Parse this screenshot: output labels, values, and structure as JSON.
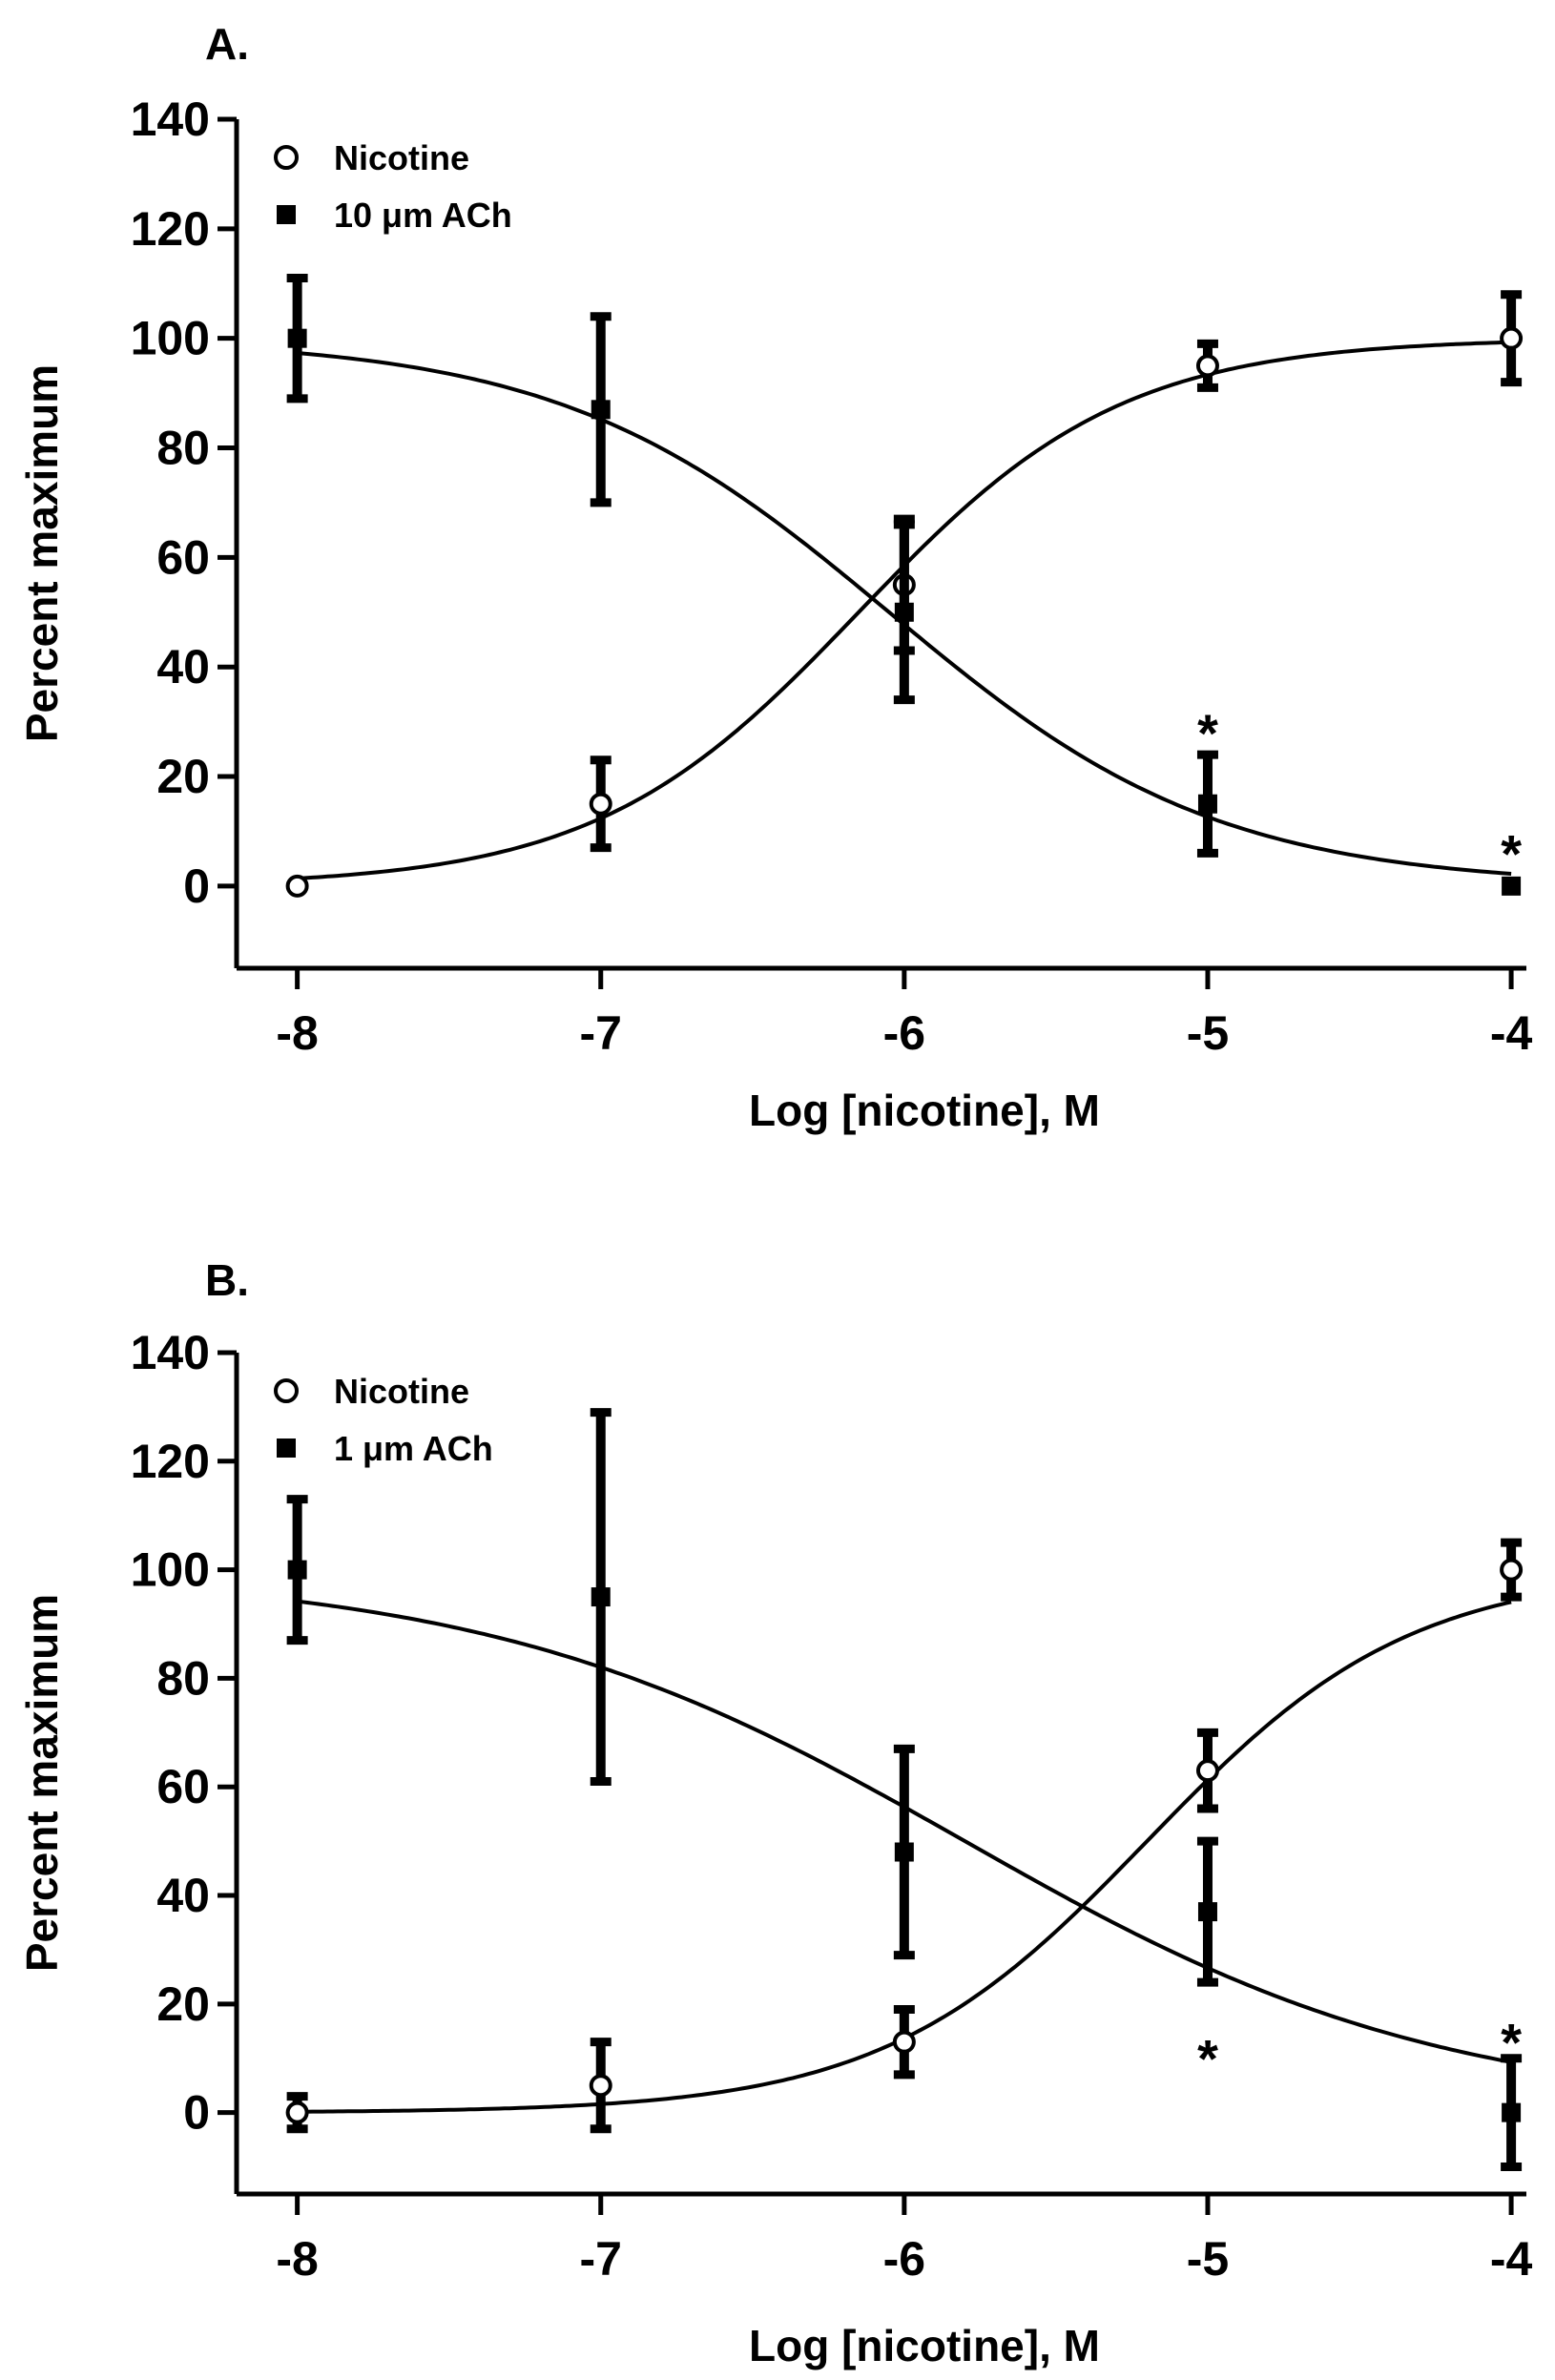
{
  "chart_data": [
    {
      "type": "scatter",
      "panel_label": "A.",
      "xlabel": "Log [nicotine], M",
      "ylabel": "Percent maximum",
      "xlim": [
        -8.2,
        -3.95
      ],
      "ylim": [
        -15,
        140
      ],
      "x_ticks": [
        -8,
        -7,
        -6,
        -5,
        -4
      ],
      "x_tick_labels": [
        "-8",
        "-7",
        "-6",
        "-5",
        "-4"
      ],
      "y_ticks": [
        0,
        20,
        40,
        60,
        80,
        100,
        120,
        140
      ],
      "y_tick_labels": [
        "0",
        "20",
        "40",
        "60",
        "80",
        "100",
        "120",
        "140"
      ],
      "legend_position": "top-left",
      "series": [
        {
          "name": "Nicotine",
          "marker": "open-circle",
          "x": [
            -8,
            -7,
            -6,
            -5,
            -4
          ],
          "y": [
            0,
            15,
            55,
            95,
            100
          ],
          "err": [
            0,
            8,
            12,
            4,
            8
          ],
          "fit": {
            "model": "sigmoid",
            "bottom": 0,
            "top": 100,
            "log_ec50": -6.15,
            "hill": 1.0
          }
        },
        {
          "name": "10 μm ACh",
          "marker": "filled-square",
          "x": [
            -8,
            -7,
            -6,
            -5,
            -4
          ],
          "y": [
            100,
            87,
            50,
            15,
            0
          ],
          "err": [
            11,
            17,
            16,
            9,
            0
          ],
          "fit": {
            "model": "sigmoid",
            "bottom": 0,
            "top": 100,
            "log_ec50": -6.05,
            "hill": -0.8
          }
        }
      ],
      "annotations": [
        {
          "text": "*",
          "x": -5,
          "y": 28
        },
        {
          "text": "*",
          "x": -4,
          "y": 6
        }
      ]
    },
    {
      "type": "scatter",
      "panel_label": "B.",
      "xlabel": "Log [nicotine], M",
      "ylabel": "Percent maximum",
      "xlim": [
        -8.2,
        -3.95
      ],
      "ylim": [
        -15,
        140
      ],
      "x_ticks": [
        -8,
        -7,
        -6,
        -5,
        -4
      ],
      "x_tick_labels": [
        "-8",
        "-7",
        "-6",
        "-5",
        "-4"
      ],
      "y_ticks": [
        0,
        20,
        40,
        60,
        80,
        100,
        120,
        140
      ],
      "y_tick_labels": [
        "0",
        "20",
        "40",
        "60",
        "80",
        "100",
        "120",
        "140"
      ],
      "legend_position": "top-left",
      "series": [
        {
          "name": "Nicotine",
          "marker": "open-circle",
          "x": [
            -8,
            -7,
            -6,
            -5,
            -4
          ],
          "y": [
            0,
            5,
            13,
            63,
            100
          ],
          "err": [
            3,
            8,
            6,
            7,
            5
          ],
          "fit": {
            "model": "sigmoid",
            "bottom": 0,
            "top": 100,
            "log_ec50": -5.2,
            "hill": 1.0
          }
        },
        {
          "name": "1 μm ACh",
          "marker": "filled-square",
          "x": [
            -8,
            -7,
            -6,
            -5,
            -4
          ],
          "y": [
            100,
            95,
            48,
            37,
            0
          ],
          "err": [
            13,
            34,
            19,
            13,
            10
          ],
          "fit": {
            "model": "sigmoid",
            "bottom": 0,
            "top": 100,
            "log_ec50": -5.8,
            "hill": -0.55
          }
        }
      ],
      "annotations": [
        {
          "text": "*",
          "x": -5,
          "y": 10
        },
        {
          "text": "*",
          "x": -4,
          "y": 13
        }
      ]
    }
  ]
}
